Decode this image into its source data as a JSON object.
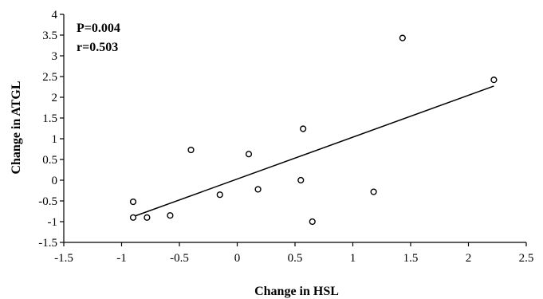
{
  "chart_data": {
    "type": "scatter",
    "title": "",
    "xlabel": "Change in HSL",
    "ylabel": "Change in ATGL",
    "xlim": [
      -1.5,
      2.5
    ],
    "ylim": [
      -1.5,
      4
    ],
    "xticks": [
      "-1.5",
      "-1",
      "-0.5",
      "0",
      "0.5",
      "1",
      "1.5",
      "2",
      "2.5"
    ],
    "yticks": [
      "-1.5",
      "-1",
      "-0.5",
      "0",
      "0.5",
      "1",
      "1.5",
      "2",
      "2.5",
      "3",
      "3.5",
      "4"
    ],
    "grid": false,
    "annotations": [
      "P=0.004",
      "r=0.503"
    ],
    "points": [
      {
        "x": -0.9,
        "y": -0.52
      },
      {
        "x": -0.9,
        "y": -0.9
      },
      {
        "x": -0.78,
        "y": -0.9
      },
      {
        "x": -0.58,
        "y": -0.85
      },
      {
        "x": -0.4,
        "y": 0.73
      },
      {
        "x": -0.15,
        "y": -0.35
      },
      {
        "x": 0.1,
        "y": 0.63
      },
      {
        "x": 0.18,
        "y": -0.22
      },
      {
        "x": 0.55,
        "y": 0.0
      },
      {
        "x": 0.57,
        "y": 1.24
      },
      {
        "x": 0.65,
        "y": -1.0
      },
      {
        "x": 1.18,
        "y": -0.28
      },
      {
        "x": 1.43,
        "y": 3.43
      },
      {
        "x": 2.22,
        "y": 2.42
      }
    ],
    "trendline": {
      "x": [
        -0.9,
        2.22
      ],
      "y": [
        -0.88,
        2.27
      ]
    },
    "marker_color": "#000000",
    "line_color": "#000000"
  }
}
